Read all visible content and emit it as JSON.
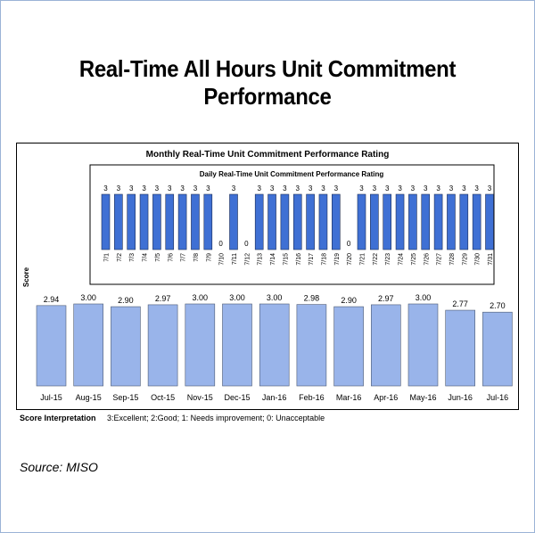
{
  "page": {
    "title": "Real-Time All Hours Unit Commitment Performance",
    "source": "Source:  MISO"
  },
  "chart_data": [
    {
      "type": "bar",
      "title": "Monthly Real-Time Unit Commitment Performance Rating",
      "ylabel": "Score",
      "categories": [
        "Jul-15",
        "Aug-15",
        "Sep-15",
        "Oct-15",
        "Nov-15",
        "Dec-15",
        "Jan-16",
        "Feb-16",
        "Mar-16",
        "Apr-16",
        "May-16",
        "Jun-16",
        "Jul-16"
      ],
      "values": [
        2.94,
        3.0,
        2.9,
        2.97,
        3.0,
        3.0,
        3.0,
        2.98,
        2.9,
        2.97,
        3.0,
        2.77,
        2.7
      ],
      "value_labels": [
        "2.94",
        "3.00",
        "2.90",
        "2.97",
        "3.00",
        "3.00",
        "3.00",
        "2.98",
        "2.90",
        "2.97",
        "3.00",
        "2.77",
        "2.70"
      ],
      "ylim": [
        0,
        3
      ],
      "bar_color": "#99b4ea"
    },
    {
      "type": "bar",
      "title": "Daily Real-Time Unit Commitment Performance Rating",
      "categories": [
        "7/1",
        "7/2",
        "7/3",
        "7/4",
        "7/5",
        "7/6",
        "7/7",
        "7/8",
        "7/9",
        "7/10",
        "7/11",
        "7/12",
        "7/13",
        "7/14",
        "7/15",
        "7/16",
        "7/17",
        "7/18",
        "7/19",
        "7/20",
        "7/21",
        "7/22",
        "7/23",
        "7/24",
        "7/25",
        "7/26",
        "7/27",
        "7/28",
        "7/29",
        "7/30",
        "7/31"
      ],
      "values": [
        3,
        3,
        3,
        3,
        3,
        3,
        3,
        3,
        3,
        0,
        3,
        0,
        3,
        3,
        3,
        3,
        3,
        3,
        3,
        0,
        3,
        3,
        3,
        3,
        3,
        3,
        3,
        3,
        3,
        3,
        3
      ],
      "ylim": [
        0,
        3
      ],
      "bar_color": "#3f70d4"
    }
  ],
  "legend_note": {
    "label": "Score Interpretation",
    "text": "3:Excellent; 2:Good; 1: Needs improvement; 0: Unacceptable"
  }
}
